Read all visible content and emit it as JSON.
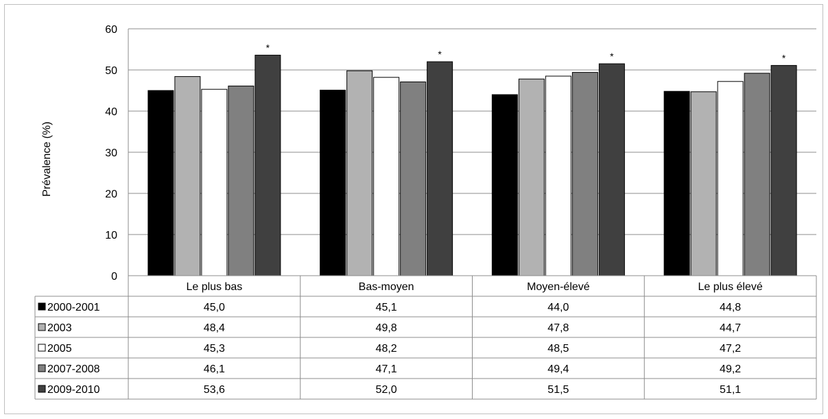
{
  "chart_data": {
    "type": "bar",
    "ylabel": "Prévalence (%)",
    "ylim": [
      0,
      60
    ],
    "yticks": [
      "0",
      "10",
      "20",
      "30",
      "40",
      "50",
      "60"
    ],
    "grid": true,
    "legend": "data-table",
    "categories": [
      "Le plus bas",
      "Bas-moyen",
      "Moyen-élevé",
      "Le plus élevé"
    ],
    "series": [
      {
        "name": "2000-2001",
        "color": "#000000",
        "values": [
          45.0,
          45.1,
          44.0,
          44.8
        ],
        "labels": [
          "45,0",
          "45,1",
          "44,0",
          "44,8"
        ]
      },
      {
        "name": "2003",
        "color": "#b2b2b2",
        "values": [
          48.4,
          49.8,
          47.8,
          44.7
        ],
        "labels": [
          "48,4",
          "49,8",
          "47,8",
          "44,7"
        ]
      },
      {
        "name": "2005",
        "color": "#ffffff",
        "values": [
          45.3,
          48.2,
          48.5,
          47.2
        ],
        "labels": [
          "45,3",
          "48,2",
          "48,5",
          "47,2"
        ]
      },
      {
        "name": "2007-2008",
        "color": "#808080",
        "values": [
          46.1,
          47.1,
          49.4,
          49.2
        ],
        "labels": [
          "46,1",
          "47,1",
          "49,4",
          "49,2"
        ]
      },
      {
        "name": "2009-2010",
        "color": "#404040",
        "values": [
          53.6,
          52.0,
          51.5,
          51.1
        ],
        "labels": [
          "53,6",
          "52,0",
          "51,5",
          "51,1"
        ],
        "annotations": [
          "*",
          "*",
          "*",
          "*"
        ]
      }
    ]
  }
}
